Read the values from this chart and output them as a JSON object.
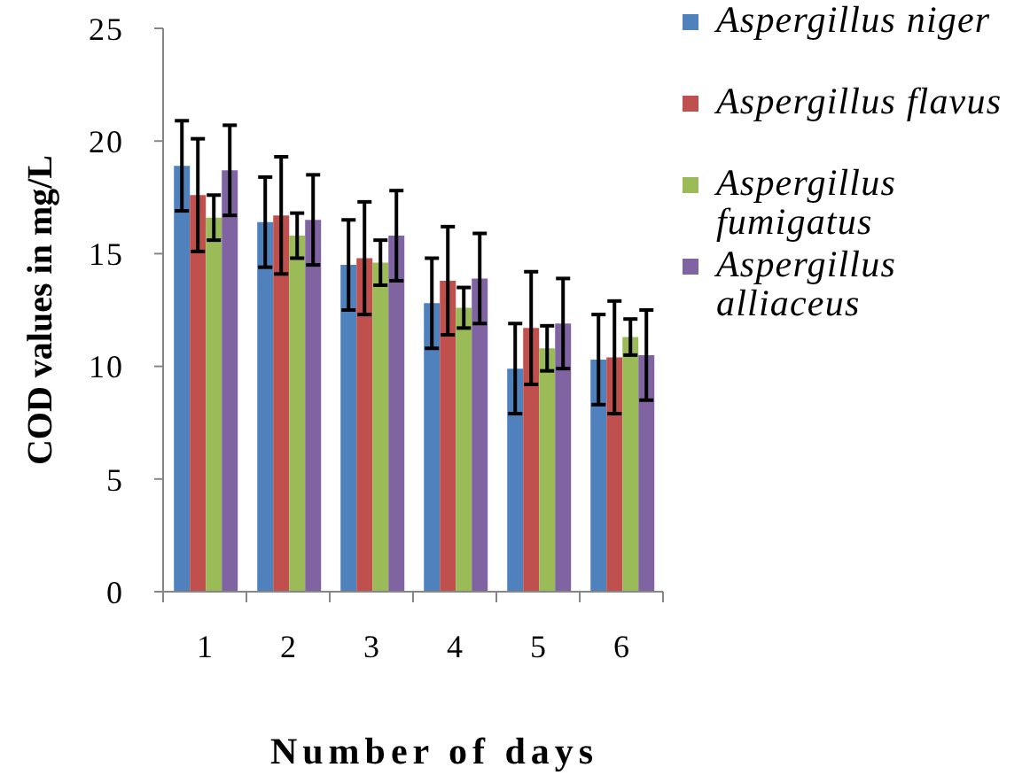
{
  "chart_data": {
    "type": "bar",
    "xlabel": "Number of days",
    "ylabel": "COD values in mg/L",
    "categories": [
      "1",
      "2",
      "3",
      "4",
      "5",
      "6"
    ],
    "series": [
      {
        "name": "Aspergillus niger",
        "color": "#4f81bd",
        "values": [
          18.9,
          16.4,
          14.5,
          12.8,
          9.9,
          10.3
        ],
        "errors": [
          2.0,
          2.0,
          2.0,
          2.0,
          2.0,
          2.0
        ]
      },
      {
        "name": "Aspergillus flavus",
        "color": "#c0504d",
        "values": [
          17.6,
          16.7,
          14.8,
          13.8,
          11.7,
          10.4
        ],
        "errors": [
          2.5,
          2.6,
          2.5,
          2.4,
          2.5,
          2.5
        ]
      },
      {
        "name": "Aspergillus fumigatus",
        "color": "#9bbb59",
        "values": [
          16.6,
          15.8,
          14.6,
          12.6,
          10.8,
          11.3
        ],
        "errors": [
          1.0,
          1.0,
          1.0,
          0.9,
          1.0,
          0.8
        ]
      },
      {
        "name": "Aspergillus alliaceus",
        "color": "#8064a2",
        "values": [
          18.7,
          16.5,
          15.8,
          13.9,
          11.9,
          10.5
        ],
        "errors": [
          2.0,
          2.0,
          2.0,
          2.0,
          2.0,
          2.0
        ]
      }
    ],
    "ylim": [
      0,
      25
    ],
    "yticks": [
      0,
      5,
      10,
      15,
      20,
      25
    ],
    "legend": "top right"
  }
}
